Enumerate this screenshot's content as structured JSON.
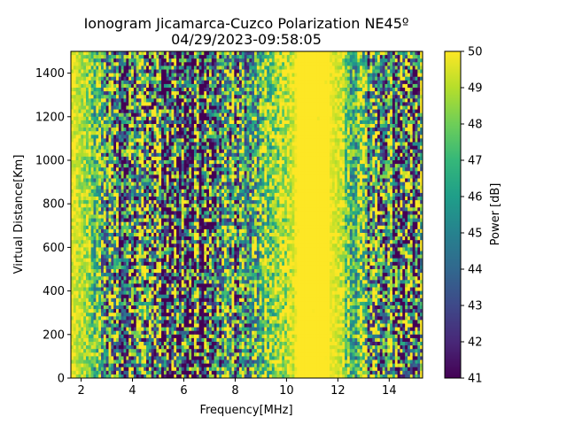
{
  "chart_data": {
    "type": "heatmap",
    "title": "Ionogram Jicamarca-Cuzco Polarization NE45º",
    "subtitle": "04/29/2023-09:58:05",
    "xlabel": "Frequency[MHz]",
    "ylabel": "Virtual Distance[Km]",
    "xlim": [
      1.6,
      15.3
    ],
    "ylim": [
      0,
      1500
    ],
    "x_ticks": [
      2,
      4,
      6,
      8,
      10,
      12,
      14
    ],
    "y_ticks": [
      0,
      200,
      400,
      600,
      800,
      1000,
      1200,
      1400
    ],
    "colorbar": {
      "label": "Power [dB]",
      "min": 41,
      "max": 50,
      "ticks": [
        41,
        42,
        43,
        44,
        45,
        46,
        47,
        48,
        49,
        50
      ],
      "colormap": "viridis"
    },
    "column_profile_freq_mhz": [
      1.6,
      2.0,
      2.4,
      2.8,
      3.2,
      3.6,
      4.0,
      4.4,
      4.8,
      5.2,
      5.6,
      6.0,
      6.4,
      6.8,
      7.2,
      7.6,
      8.0,
      8.4,
      8.8,
      9.2,
      9.6,
      10.0,
      10.4,
      10.8,
      11.2,
      11.6,
      12.0,
      12.4,
      12.8,
      13.2,
      13.6,
      14.0,
      14.4,
      14.8,
      15.2
    ],
    "column_profile_mean_db": [
      49.5,
      49.4,
      48.5,
      47.0,
      46.0,
      45.5,
      45.8,
      45.2,
      44.6,
      44.3,
      44.4,
      44.7,
      44.1,
      43.3,
      45.6,
      46.4,
      45.9,
      46.9,
      46.7,
      47.8,
      48.3,
      48.6,
      50.0,
      50.0,
      50.0,
      50.0,
      49.7,
      48.1,
      47.9,
      45.6,
      45.4,
      46.4,
      44.4,
      44.9,
      45.4
    ]
  }
}
